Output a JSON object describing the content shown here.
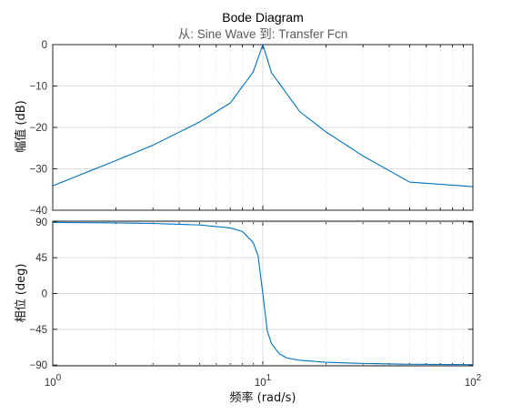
{
  "chart_data": {
    "type": "line",
    "title": "Bode Diagram",
    "subtitle": "从: Sine Wave  到: Transfer Fcn",
    "xlabel": "频率  (rad/s)",
    "xscale": "log",
    "xlim": [
      1,
      100
    ],
    "x_ticks": [
      {
        "base": "10",
        "exp": "0"
      },
      {
        "base": "10",
        "exp": "1"
      },
      {
        "base": "10",
        "exp": "2"
      }
    ],
    "grid": true,
    "color": "#0072bd",
    "panels": [
      {
        "name": "magnitude",
        "ylabel": "幅值 (dB)",
        "ylim": [
          -40,
          0
        ],
        "y_ticks": [
          0,
          -10,
          -20,
          -30,
          -40
        ],
        "y_tick_labels": [
          "0",
          "−10",
          "−20",
          "−30",
          "−40"
        ],
        "x": [
          1,
          2,
          3,
          5,
          7,
          9,
          10,
          11,
          15,
          20,
          30,
          50,
          100
        ],
        "y": [
          -34.1,
          -28.0,
          -24.3,
          -18.7,
          -14.1,
          -6.6,
          0,
          -6.8,
          -16.2,
          -21.1,
          -26.9,
          -33.2,
          -34.3
        ]
      },
      {
        "name": "phase",
        "ylabel": "相位 (deg)",
        "ylim": [
          -91,
          91
        ],
        "y_ticks": [
          90,
          45,
          0,
          -45,
          -90
        ],
        "y_tick_labels": [
          "90",
          "45",
          "0",
          "−45",
          "−90"
        ],
        "x": [
          1,
          2,
          3,
          5,
          7,
          8,
          9,
          9.5,
          10,
          10.5,
          11,
          12,
          13,
          15,
          20,
          30,
          50,
          100
        ],
        "y": [
          89.4,
          88.8,
          88.1,
          86.2,
          82.5,
          78,
          64,
          47,
          0,
          -47,
          -63,
          -76,
          -81,
          -84,
          -86.5,
          -88,
          -89,
          -89.5
        ]
      }
    ]
  }
}
